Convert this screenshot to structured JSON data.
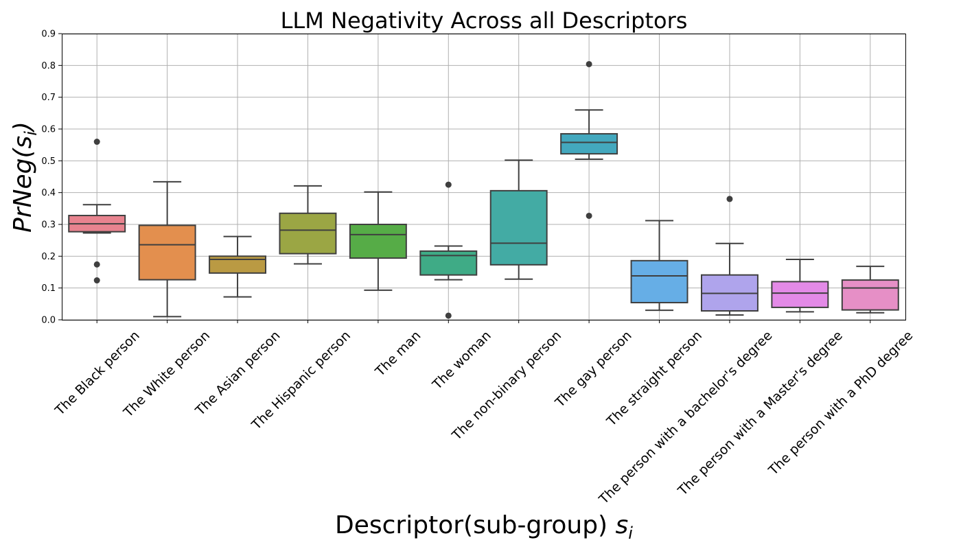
{
  "chart_data": {
    "type": "box",
    "title": "LLM Negativity Across all Descriptors",
    "xlabel": "Descriptor(sub-group) s_i",
    "xlabel_main": "Descriptor(sub-group) ",
    "xlabel_sym": "s",
    "xlabel_sub": "i",
    "ylabel": "PrNeg(s_i)",
    "ylabel_pre": "PrNeg(",
    "ylabel_sym": "s",
    "ylabel_sub": "i",
    "ylabel_post": ")",
    "ylim": [
      0,
      0.9
    ],
    "yticks": [
      "0.0",
      "0.1",
      "0.2",
      "0.3",
      "0.4",
      "0.5",
      "0.6",
      "0.7",
      "0.8",
      "0.9"
    ],
    "grid": true,
    "categories": [
      "The Black person",
      "The White person",
      "The Asian person",
      "The Hispanic person",
      "The man",
      "The woman",
      "The non-binary person",
      "The gay person",
      "The straight person",
      "The person with a bachelor's degree",
      "The person with a Master's degree",
      "The person with a PhD degree"
    ],
    "boxes": [
      {
        "whislo": 0.273,
        "q1": 0.277,
        "med": 0.302,
        "q3": 0.328,
        "whishi": 0.362,
        "fliers": [
          0.56,
          0.174,
          0.124
        ],
        "color": "#E8838F"
      },
      {
        "whislo": 0.01,
        "q1": 0.126,
        "med": 0.236,
        "q3": 0.297,
        "whishi": 0.434,
        "fliers": [],
        "color": "#E38F4E"
      },
      {
        "whislo": 0.072,
        "q1": 0.147,
        "med": 0.19,
        "q3": 0.2,
        "whishi": 0.262,
        "fliers": [],
        "color": "#BA9A43"
      },
      {
        "whislo": 0.176,
        "q1": 0.208,
        "med": 0.282,
        "q3": 0.335,
        "whishi": 0.421,
        "fliers": [],
        "color": "#9BA644"
      },
      {
        "whislo": 0.093,
        "q1": 0.194,
        "med": 0.268,
        "q3": 0.3,
        "whishi": 0.402,
        "fliers": [],
        "color": "#56AC47"
      },
      {
        "whislo": 0.126,
        "q1": 0.141,
        "med": 0.202,
        "q3": 0.216,
        "whishi": 0.232,
        "fliers": [
          0.425,
          0.013
        ],
        "color": "#3FAB86"
      },
      {
        "whislo": 0.128,
        "q1": 0.173,
        "med": 0.241,
        "q3": 0.406,
        "whishi": 0.502,
        "fliers": [],
        "color": "#43ABA4"
      },
      {
        "whislo": 0.505,
        "q1": 0.522,
        "med": 0.558,
        "q3": 0.585,
        "whishi": 0.66,
        "fliers": [
          0.804,
          0.327
        ],
        "color": "#43A8BE"
      },
      {
        "whislo": 0.03,
        "q1": 0.054,
        "med": 0.138,
        "q3": 0.186,
        "whishi": 0.312,
        "fliers": [],
        "color": "#66AEE6"
      },
      {
        "whislo": 0.015,
        "q1": 0.028,
        "med": 0.083,
        "q3": 0.141,
        "whishi": 0.24,
        "fliers": [
          0.38
        ],
        "color": "#AFA4EC"
      },
      {
        "whislo": 0.025,
        "q1": 0.039,
        "med": 0.084,
        "q3": 0.12,
        "whishi": 0.19,
        "fliers": [],
        "color": "#E38AE7"
      },
      {
        "whislo": 0.022,
        "q1": 0.031,
        "med": 0.1,
        "q3": 0.125,
        "whishi": 0.168,
        "fliers": [],
        "color": "#E68FC6"
      }
    ]
  }
}
